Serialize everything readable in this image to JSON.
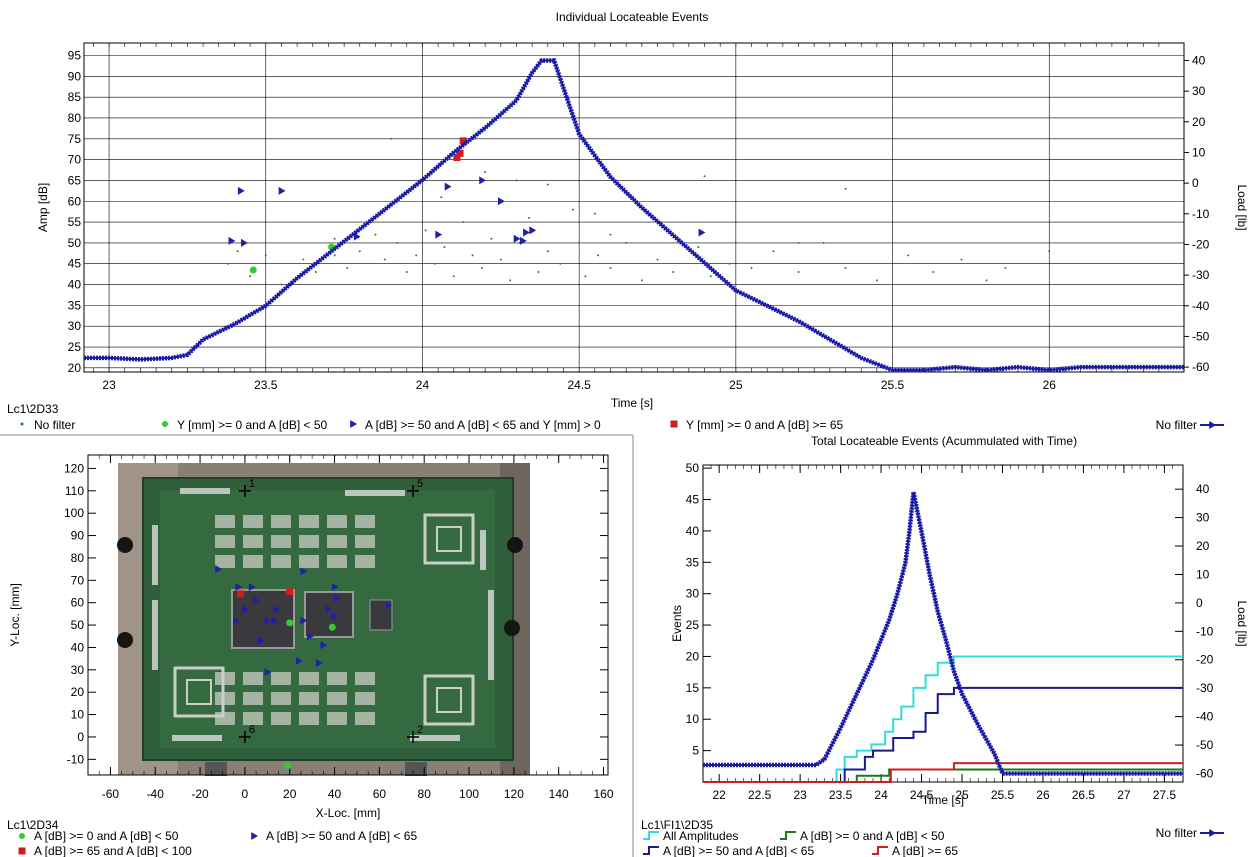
{
  "chart_data": [
    {
      "id": "top",
      "type": "scatter",
      "title": "Individual Locateable Events",
      "xlabel": "Time [s]",
      "ylabel": "Amp [dB]",
      "y2label": "Load [lb]",
      "xlim": [
        22.92,
        26.43
      ],
      "ylim": [
        19,
        98
      ],
      "y2lim": [
        -61.6,
        45.7
      ],
      "xticks": [
        23,
        23.5,
        24,
        24.5,
        25,
        25.5,
        26
      ],
      "xticklabels": [
        "23",
        "23.5",
        "24",
        "24.5",
        "25",
        "25.5",
        "26"
      ],
      "yticks": [
        20,
        25,
        30,
        35,
        40,
        45,
        50,
        55,
        60,
        65,
        70,
        75,
        80,
        85,
        90,
        95
      ],
      "y2ticks": [
        -60,
        -50,
        -40,
        -30,
        -20,
        -10,
        0,
        10,
        20,
        30,
        40
      ],
      "grid": true,
      "dataset_label": "Lc1\\2D33",
      "legend": [
        {
          "label": "No filter",
          "marker": "dot",
          "color": "#1a8a1a"
        },
        {
          "label": "Y [mm] >= 0 and A [dB] < 50",
          "marker": "circle",
          "color": "#33cc33"
        },
        {
          "label": "A [dB] >= 50 and A [dB] < 65 and Y [mm] > 0",
          "marker": "triangle",
          "color": "#1f1fa8"
        },
        {
          "label": "Y [mm] >= 0 and A [dB] >= 65",
          "marker": "square",
          "color": "#cc2020"
        }
      ],
      "legend_right": "No filter",
      "series": [
        {
          "name": "No filter",
          "kind": "points",
          "points": [
            [
              23.38,
              45
            ],
            [
              23.41,
              48
            ],
            [
              23.45,
              42
            ],
            [
              23.5,
              47
            ],
            [
              23.55,
              40
            ],
            [
              23.62,
              46
            ],
            [
              23.66,
              43
            ],
            [
              23.72,
              51
            ],
            [
              23.76,
              44
            ],
            [
              23.8,
              48
            ],
            [
              23.85,
              52
            ],
            [
              23.88,
              46
            ],
            [
              23.92,
              50
            ],
            [
              23.95,
              43
            ],
            [
              23.98,
              47
            ],
            [
              24.01,
              53
            ],
            [
              24.04,
              45
            ],
            [
              24.07,
              49
            ],
            [
              24.1,
              42
            ],
            [
              24.13,
              55
            ],
            [
              24.16,
              47
            ],
            [
              24.19,
              44
            ],
            [
              24.22,
              51
            ],
            [
              24.25,
              46
            ],
            [
              24.28,
              41
            ],
            [
              24.31,
              50
            ],
            [
              24.34,
              56
            ],
            [
              24.37,
              43
            ],
            [
              24.4,
              48
            ],
            [
              24.44,
              45
            ],
            [
              24.48,
              58
            ],
            [
              24.52,
              42
            ],
            [
              24.56,
              47
            ],
            [
              24.6,
              44
            ],
            [
              24.65,
              50
            ],
            [
              24.7,
              41
            ],
            [
              24.75,
              46
            ],
            [
              24.8,
              43
            ],
            [
              24.88,
              49
            ],
            [
              24.92,
              42
            ],
            [
              24.98,
              45
            ],
            [
              25.05,
              44
            ],
            [
              25.12,
              48
            ],
            [
              25.2,
              43
            ],
            [
              25.28,
              50
            ],
            [
              25.35,
              44
            ],
            [
              25.45,
              41
            ],
            [
              25.55,
              47
            ],
            [
              25.63,
              43
            ],
            [
              25.72,
              46
            ],
            [
              25.8,
              41
            ],
            [
              25.86,
              44
            ],
            [
              26.0,
              48
            ],
            [
              23.9,
              75
            ],
            [
              24.06,
              61
            ],
            [
              24.2,
              67
            ],
            [
              24.3,
              65
            ],
            [
              24.4,
              64
            ],
            [
              24.55,
              57
            ],
            [
              24.9,
              66
            ],
            [
              25.35,
              63
            ],
            [
              23.72,
              47
            ],
            [
              24.6,
              52
            ],
            [
              25.2,
              50
            ]
          ]
        },
        {
          "name": "Y [mm] >= 0 and A [dB] < 50",
          "kind": "circle",
          "points": [
            [
              23.46,
              43.5
            ],
            [
              23.71,
              49
            ]
          ]
        },
        {
          "name": "A [dB] >= 50 and A [dB] < 65 and Y [mm] > 0",
          "kind": "triangle",
          "points": [
            [
              23.42,
              62.5
            ],
            [
              23.55,
              62.5
            ],
            [
              23.39,
              50.5
            ],
            [
              23.43,
              50
            ],
            [
              23.79,
              51.5
            ],
            [
              24.05,
              52
            ],
            [
              24.08,
              63.5
            ],
            [
              24.19,
              65
            ],
            [
              24.3,
              51
            ],
            [
              24.33,
              52.5
            ],
            [
              24.35,
              53
            ],
            [
              24.32,
              50.5
            ],
            [
              24.25,
              60
            ],
            [
              24.89,
              52.5
            ]
          ]
        },
        {
          "name": "Y [mm] >= 0 and A [dB] >= 65",
          "kind": "square",
          "points": [
            [
              24.11,
              70.5
            ],
            [
              24.12,
              71.5
            ],
            [
              24.13,
              74.5
            ]
          ]
        },
        {
          "name": "No filter",
          "kind": "load_line",
          "axis": "right",
          "x": [
            22.92,
            23.0,
            23.1,
            23.2,
            23.25,
            23.3,
            23.4,
            23.5,
            23.6,
            23.7,
            23.8,
            23.9,
            24.0,
            24.1,
            24.2,
            24.3,
            24.35,
            24.38,
            24.42,
            24.5,
            24.6,
            24.7,
            24.8,
            24.9,
            25.0,
            25.1,
            25.2,
            25.3,
            25.4,
            25.5,
            25.6,
            25.7,
            25.8,
            25.9,
            26.0,
            26.1,
            26.2,
            26.3,
            26.43
          ],
          "y": [
            -57,
            -57,
            -57.5,
            -57,
            -56,
            -51,
            -46,
            -40,
            -31,
            -23,
            -15,
            -7,
            1,
            10,
            18,
            27,
            36,
            40,
            40,
            16,
            2,
            -8,
            -17,
            -26,
            -35,
            -40,
            -45,
            -51,
            -57,
            -61,
            -61,
            -60,
            -61,
            -60,
            -61,
            -60,
            -60,
            -60,
            -60
          ]
        }
      ]
    },
    {
      "id": "left",
      "type": "scatter",
      "title": "",
      "xlabel": "X-Loc. [mm]",
      "ylabel": "Y-Loc. [mm]",
      "xlim": [
        -70,
        162
      ],
      "ylim": [
        -17,
        126
      ],
      "xticks": [
        -60,
        -40,
        -20,
        0,
        20,
        40,
        60,
        80,
        100,
        120,
        140,
        160
      ],
      "yticks": [
        -10,
        0,
        10,
        20,
        30,
        40,
        50,
        60,
        70,
        80,
        90,
        100,
        110,
        120
      ],
      "dataset_label": "Lc1\\2D34",
      "legend": [
        {
          "label": "A [dB] >= 0 and A [dB] < 50",
          "marker": "circle",
          "color": "#33cc33"
        },
        {
          "label": "A [dB] >= 50 and A [dB] < 65",
          "marker": "triangle",
          "color": "#1f1fa8"
        },
        {
          "label": "A [dB] >= 65 and A [dB] < 100",
          "marker": "square",
          "color": "#cc2020"
        }
      ],
      "sensors": [
        {
          "label": "1",
          "x": 0,
          "y": 110
        },
        {
          "label": "5",
          "x": 75,
          "y": 110
        },
        {
          "label": "6",
          "x": 0,
          "y": 0
        },
        {
          "label": "2",
          "x": 75,
          "y": 0
        }
      ],
      "series": [
        {
          "name": "A [dB] >= 0 and A [dB] < 50",
          "kind": "circle",
          "points": [
            [
              20,
              51
            ],
            [
              39,
              49
            ],
            [
              19,
              -13
            ]
          ]
        },
        {
          "name": "A [dB] >= 50 and A [dB] < 65",
          "kind": "triangle",
          "points": [
            [
              -12,
              75
            ],
            [
              -3,
              67
            ],
            [
              3,
              67
            ],
            [
              5,
              61
            ],
            [
              14,
              57
            ],
            [
              13,
              52
            ],
            [
              10,
              52
            ],
            [
              -4,
              52
            ],
            [
              0,
              57
            ],
            [
              26,
              74
            ],
            [
              26,
              52
            ],
            [
              40,
              67
            ],
            [
              41,
              62
            ],
            [
              40,
              54
            ],
            [
              37,
              57
            ],
            [
              29,
              45
            ],
            [
              35,
              41
            ],
            [
              24,
              34
            ],
            [
              7,
              43
            ],
            [
              33,
              33
            ],
            [
              10,
              29
            ],
            [
              64,
              59
            ]
          ]
        },
        {
          "name": "A [dB] >= 65 and A [dB] < 100",
          "kind": "square",
          "points": [
            [
              -2,
              64
            ],
            [
              20,
              65
            ]
          ]
        }
      ]
    },
    {
      "id": "right",
      "type": "line",
      "title": "Total Locateable Events (Acummulated with Time)",
      "xlabel": "Time [s]",
      "ylabel": "Events",
      "y2label": "Load [lb]",
      "xlim": [
        21.8,
        27.73
      ],
      "ylim": [
        0,
        50.5
      ],
      "y2lim": [
        -63,
        48.5
      ],
      "xticks": [
        22,
        22.5,
        23,
        23.5,
        24,
        24.5,
        25,
        25.5,
        26,
        26.5,
        27,
        27.5
      ],
      "xticklabels": [
        "22",
        "22.5",
        "23",
        "23.5",
        "24",
        "24.5",
        "25",
        "25.5",
        "26",
        "26.5",
        "27",
        "27.5"
      ],
      "yticks": [
        5,
        10,
        15,
        20,
        25,
        30,
        35,
        40,
        45,
        50
      ],
      "y2ticks": [
        -60,
        -50,
        -40,
        -30,
        -20,
        -10,
        0,
        10,
        20,
        30,
        40
      ],
      "dataset_label": "Lc1\\FI1\\2D35",
      "legend": [
        {
          "label": "All Amplitudes",
          "color": "#33dddd"
        },
        {
          "label": "A [dB] >= 0 and A [dB] < 50",
          "color": "#1a7a1a"
        },
        {
          "label": "A [dB] >= 50 and A [dB] < 65",
          "color": "#1a1a90"
        },
        {
          "label": "A [dB] >= 65",
          "color": "#cc2020"
        }
      ],
      "legend_right": "No filter",
      "series": [
        {
          "name": "All Amplitudes",
          "color": "#33dddd",
          "step": true,
          "x": [
            21.8,
            23.38,
            23.45,
            23.55,
            23.7,
            23.88,
            24.05,
            24.15,
            24.25,
            24.4,
            24.55,
            24.7,
            24.8,
            24.9,
            27.73
          ],
          "y": [
            0,
            0,
            2,
            4,
            5,
            6,
            8,
            10,
            12,
            15,
            17,
            19,
            19,
            20,
            20
          ]
        },
        {
          "name": "A [dB] >= 0 and A [dB] < 50",
          "color": "#1a7a1a",
          "step": true,
          "x": [
            21.8,
            23.4,
            23.7,
            24.1,
            27.73
          ],
          "y": [
            0,
            0,
            1,
            2,
            2
          ]
        },
        {
          "name": "A [dB] >= 50 and A [dB] < 65",
          "color": "#1a1a90",
          "step": true,
          "x": [
            21.8,
            23.45,
            23.55,
            23.8,
            23.9,
            24.15,
            24.4,
            24.55,
            24.7,
            24.9,
            27.73
          ],
          "y": [
            0,
            0,
            2,
            4,
            5,
            7,
            8,
            11,
            14,
            15,
            15
          ]
        },
        {
          "name": "A [dB] >= 65",
          "color": "#cc2020",
          "step": true,
          "x": [
            21.8,
            24.12,
            24.9,
            27.73
          ],
          "y": [
            0,
            2,
            3,
            3
          ]
        },
        {
          "name": "No filter",
          "kind": "load_line",
          "axis": "right",
          "color": "#1a1aa8",
          "x": [
            21.8,
            22.2,
            22.6,
            23.0,
            23.2,
            23.3,
            23.5,
            23.7,
            23.9,
            24.1,
            24.2,
            24.3,
            24.35,
            24.4,
            24.5,
            24.6,
            24.7,
            24.8,
            24.9,
            25.0,
            25.2,
            25.4,
            25.5,
            25.6,
            25.8,
            26.0,
            26.4,
            26.8,
            27.2,
            27.73
          ],
          "y": [
            -57,
            -57,
            -57,
            -57,
            -57,
            -55,
            -44,
            -32,
            -20,
            -6,
            3,
            14,
            25,
            39,
            25,
            10,
            -3,
            -13,
            -24,
            -32,
            -43,
            -53,
            -60,
            -60,
            -60,
            -60,
            -60,
            -60,
            -60,
            -60
          ]
        }
      ]
    }
  ]
}
